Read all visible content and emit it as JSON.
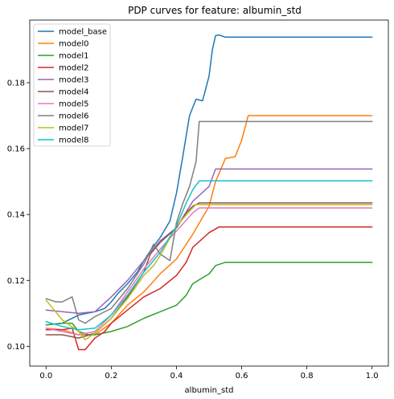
{
  "chart_data": {
    "type": "line",
    "title": "PDP curves for feature: albumin_std",
    "xlabel": "albumin_std",
    "ylabel": "",
    "xlim": [
      -0.05,
      1.05
    ],
    "ylim": [
      0.094,
      0.199
    ],
    "x_ticks": [
      0.0,
      0.2,
      0.4,
      0.6,
      0.8,
      1.0
    ],
    "x_tick_labels": [
      "0.0",
      "0.2",
      "0.4",
      "0.6",
      "0.8",
      "1.0"
    ],
    "y_ticks": [
      0.1,
      0.12,
      0.14,
      0.16,
      0.18
    ],
    "y_tick_labels": [
      "0.10",
      "0.12",
      "0.14",
      "0.16",
      "0.18"
    ],
    "grid": false,
    "legend_position": "top-left",
    "series": [
      {
        "name": "model_base",
        "color": "#1f77b4",
        "x": [
          0,
          0.05,
          0.1,
          0.15,
          0.18,
          0.2,
          0.22,
          0.25,
          0.28,
          0.3,
          0.32,
          0.35,
          0.38,
          0.4,
          0.42,
          0.44,
          0.46,
          0.48,
          0.5,
          0.51,
          0.52,
          0.53,
          0.55,
          0.6,
          1.0
        ],
        "y": [
          0.1065,
          0.107,
          0.1095,
          0.1105,
          0.1115,
          0.1135,
          0.116,
          0.119,
          0.1225,
          0.126,
          0.129,
          0.133,
          0.138,
          0.1465,
          0.158,
          0.17,
          0.175,
          0.1745,
          0.182,
          0.19,
          0.1943,
          0.1945,
          0.1938,
          0.1938,
          0.1938
        ]
      },
      {
        "name": "model0",
        "color": "#ff7f0e",
        "x": [
          0,
          0.05,
          0.1,
          0.15,
          0.2,
          0.25,
          0.3,
          0.35,
          0.4,
          0.45,
          0.5,
          0.52,
          0.55,
          0.58,
          0.6,
          0.62,
          0.65,
          1.0
        ],
        "y": [
          0.1055,
          0.105,
          0.1035,
          0.1035,
          0.107,
          0.1125,
          0.1165,
          0.122,
          0.1265,
          0.134,
          0.1425,
          0.15,
          0.157,
          0.1575,
          0.1625,
          0.17,
          0.17,
          0.17
        ]
      },
      {
        "name": "model1",
        "color": "#2ca02c",
        "x": [
          0,
          0.05,
          0.08,
          0.1,
          0.13,
          0.15,
          0.2,
          0.25,
          0.3,
          0.35,
          0.4,
          0.43,
          0.45,
          0.5,
          0.52,
          0.55,
          1.0
        ],
        "y": [
          0.1065,
          0.107,
          0.107,
          0.1045,
          0.1035,
          0.1035,
          0.1045,
          0.106,
          0.1085,
          0.1105,
          0.1125,
          0.1155,
          0.119,
          0.122,
          0.1245,
          0.1255,
          0.1255
        ]
      },
      {
        "name": "model2",
        "color": "#d62728",
        "x": [
          0,
          0.05,
          0.08,
          0.1,
          0.12,
          0.15,
          0.18,
          0.2,
          0.25,
          0.3,
          0.35,
          0.4,
          0.43,
          0.45,
          0.5,
          0.53,
          1.0
        ],
        "y": [
          0.105,
          0.105,
          0.1055,
          0.099,
          0.099,
          0.1025,
          0.1045,
          0.107,
          0.111,
          0.115,
          0.1175,
          0.1215,
          0.1255,
          0.13,
          0.1345,
          0.1362,
          0.1362
        ]
      },
      {
        "name": "model3",
        "color": "#9467bd",
        "x": [
          0,
          0.05,
          0.1,
          0.15,
          0.2,
          0.25,
          0.3,
          0.35,
          0.4,
          0.45,
          0.5,
          0.52,
          1.0
        ],
        "y": [
          0.111,
          0.1105,
          0.11,
          0.1105,
          0.115,
          0.12,
          0.126,
          0.132,
          0.136,
          0.144,
          0.1485,
          0.1538,
          0.1538
        ]
      },
      {
        "name": "model4",
        "color": "#8c564b",
        "x": [
          0,
          0.05,
          0.1,
          0.15,
          0.2,
          0.25,
          0.3,
          0.32,
          0.35,
          0.4,
          0.43,
          0.45,
          0.47,
          1.0
        ],
        "y": [
          0.1035,
          0.1035,
          0.1025,
          0.104,
          0.1085,
          0.115,
          0.1225,
          0.128,
          0.1315,
          0.136,
          0.1405,
          0.1425,
          0.1435,
          0.1435
        ]
      },
      {
        "name": "model5",
        "color": "#e377c2",
        "x": [
          0,
          0.05,
          0.1,
          0.15,
          0.2,
          0.25,
          0.3,
          0.35,
          0.4,
          0.45,
          0.47,
          1.0
        ],
        "y": [
          0.1055,
          0.1045,
          0.1035,
          0.1045,
          0.1095,
          0.1165,
          0.1235,
          0.1295,
          0.135,
          0.1405,
          0.142,
          0.142
        ]
      },
      {
        "name": "model6",
        "color": "#7f7f7f",
        "x": [
          0,
          0.03,
          0.05,
          0.08,
          0.1,
          0.12,
          0.15,
          0.2,
          0.25,
          0.3,
          0.33,
          0.35,
          0.38,
          0.4,
          0.42,
          0.44,
          0.46,
          0.47,
          1.0
        ],
        "y": [
          0.1145,
          0.1135,
          0.1135,
          0.115,
          0.108,
          0.107,
          0.109,
          0.1115,
          0.1175,
          0.125,
          0.131,
          0.128,
          0.126,
          0.1375,
          0.1435,
          0.1485,
          0.156,
          0.1682,
          0.1682
        ]
      },
      {
        "name": "model7",
        "color": "#bcbd22",
        "x": [
          0,
          0.05,
          0.1,
          0.12,
          0.15,
          0.2,
          0.25,
          0.3,
          0.33,
          0.35,
          0.4,
          0.44,
          0.46,
          1.0
        ],
        "y": [
          0.114,
          0.108,
          0.1045,
          0.102,
          0.104,
          0.1085,
          0.1145,
          0.1215,
          0.1245,
          0.1275,
          0.1365,
          0.141,
          0.143,
          0.143
        ]
      },
      {
        "name": "model8",
        "color": "#17becf",
        "x": [
          0,
          0.05,
          0.1,
          0.15,
          0.2,
          0.25,
          0.3,
          0.35,
          0.4,
          0.43,
          0.45,
          0.47,
          1.0
        ],
        "y": [
          0.1075,
          0.106,
          0.105,
          0.1055,
          0.1095,
          0.1155,
          0.1225,
          0.1285,
          0.1365,
          0.1435,
          0.1475,
          0.1502,
          0.1502
        ]
      }
    ]
  }
}
